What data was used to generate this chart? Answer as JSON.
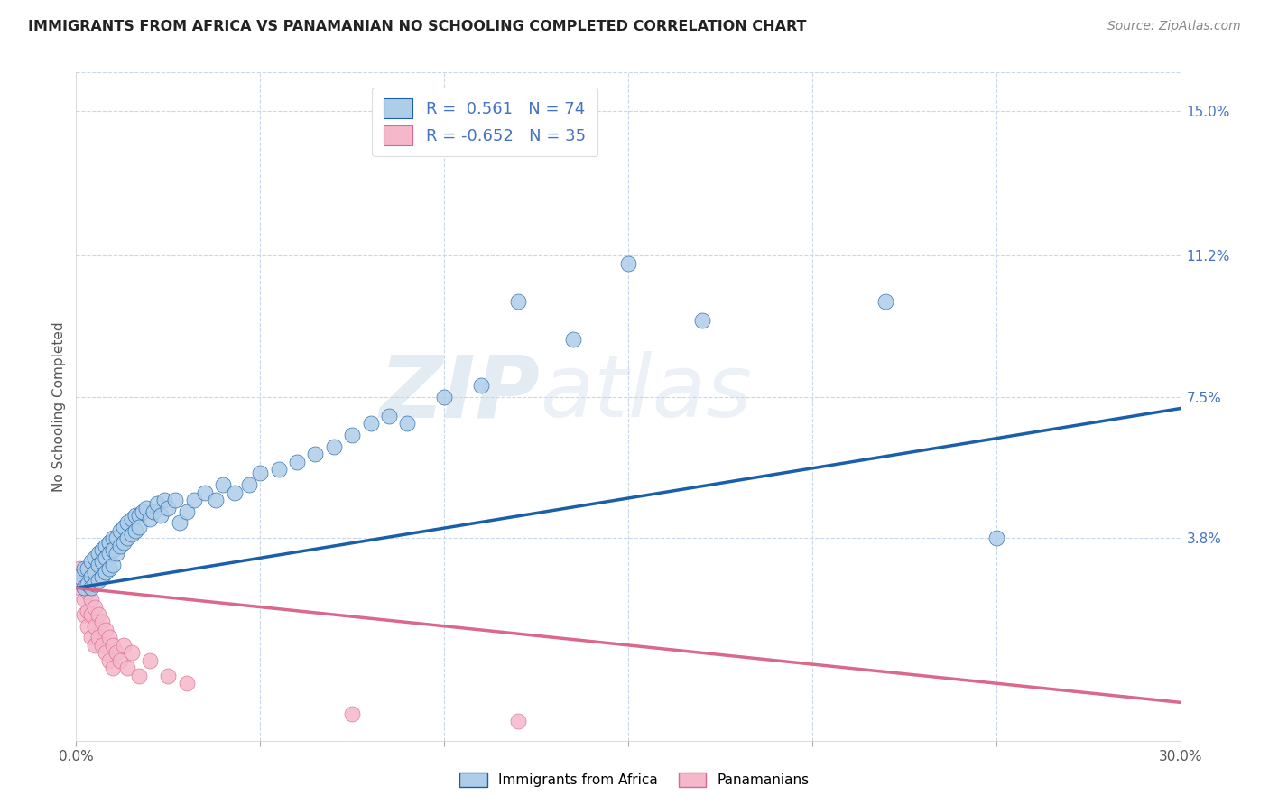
{
  "title": "IMMIGRANTS FROM AFRICA VS PANAMANIAN NO SCHOOLING COMPLETED CORRELATION CHART",
  "source": "Source: ZipAtlas.com",
  "ylabel_label": "No Schooling Completed",
  "ytick_labels": [
    "15.0%",
    "11.2%",
    "7.5%",
    "3.8%"
  ],
  "ytick_values": [
    0.15,
    0.112,
    0.075,
    0.038
  ],
  "xlim": [
    0.0,
    0.3
  ],
  "ylim": [
    -0.015,
    0.16
  ],
  "legend_labels": [
    "Immigrants from Africa",
    "Panamanians"
  ],
  "color_africa": "#aecde8",
  "color_panama": "#f5b8cb",
  "color_africa_line": "#1a5fa8",
  "color_panama_line": "#d9688a",
  "watermark_zip": "ZIP",
  "watermark_atlas": "atlas",
  "africa_x": [
    0.001,
    0.002,
    0.002,
    0.003,
    0.003,
    0.004,
    0.004,
    0.004,
    0.005,
    0.005,
    0.005,
    0.006,
    0.006,
    0.006,
    0.007,
    0.007,
    0.007,
    0.008,
    0.008,
    0.008,
    0.009,
    0.009,
    0.009,
    0.01,
    0.01,
    0.01,
    0.011,
    0.011,
    0.012,
    0.012,
    0.013,
    0.013,
    0.014,
    0.014,
    0.015,
    0.015,
    0.016,
    0.016,
    0.017,
    0.017,
    0.018,
    0.019,
    0.02,
    0.021,
    0.022,
    0.023,
    0.024,
    0.025,
    0.027,
    0.028,
    0.03,
    0.032,
    0.035,
    0.038,
    0.04,
    0.043,
    0.047,
    0.05,
    0.055,
    0.06,
    0.065,
    0.07,
    0.075,
    0.08,
    0.085,
    0.09,
    0.1,
    0.11,
    0.12,
    0.135,
    0.15,
    0.17,
    0.22,
    0.25
  ],
  "africa_y": [
    0.028,
    0.03,
    0.025,
    0.03,
    0.026,
    0.032,
    0.028,
    0.025,
    0.033,
    0.029,
    0.026,
    0.034,
    0.031,
    0.027,
    0.035,
    0.032,
    0.028,
    0.036,
    0.033,
    0.029,
    0.037,
    0.034,
    0.03,
    0.038,
    0.035,
    0.031,
    0.038,
    0.034,
    0.04,
    0.036,
    0.041,
    0.037,
    0.042,
    0.038,
    0.043,
    0.039,
    0.044,
    0.04,
    0.044,
    0.041,
    0.045,
    0.046,
    0.043,
    0.045,
    0.047,
    0.044,
    0.048,
    0.046,
    0.048,
    0.042,
    0.045,
    0.048,
    0.05,
    0.048,
    0.052,
    0.05,
    0.052,
    0.055,
    0.056,
    0.058,
    0.06,
    0.062,
    0.065,
    0.068,
    0.07,
    0.068,
    0.075,
    0.078,
    0.1,
    0.09,
    0.11,
    0.095,
    0.1,
    0.038
  ],
  "panama_x": [
    0.001,
    0.001,
    0.002,
    0.002,
    0.002,
    0.003,
    0.003,
    0.003,
    0.004,
    0.004,
    0.004,
    0.005,
    0.005,
    0.005,
    0.006,
    0.006,
    0.007,
    0.007,
    0.008,
    0.008,
    0.009,
    0.009,
    0.01,
    0.01,
    0.011,
    0.012,
    0.013,
    0.014,
    0.015,
    0.017,
    0.02,
    0.025,
    0.03,
    0.075,
    0.12
  ],
  "panama_y": [
    0.03,
    0.025,
    0.028,
    0.022,
    0.018,
    0.024,
    0.019,
    0.015,
    0.022,
    0.018,
    0.012,
    0.02,
    0.015,
    0.01,
    0.018,
    0.012,
    0.016,
    0.01,
    0.014,
    0.008,
    0.012,
    0.006,
    0.01,
    0.004,
    0.008,
    0.006,
    0.01,
    0.004,
    0.008,
    0.002,
    0.006,
    0.002,
    0.0,
    -0.008,
    -0.01
  ],
  "africa_line_x": [
    0.0,
    0.3
  ],
  "africa_line_y": [
    0.025,
    0.072
  ],
  "panama_line_x": [
    0.0,
    0.3
  ],
  "panama_line_y": [
    0.025,
    -0.005
  ]
}
